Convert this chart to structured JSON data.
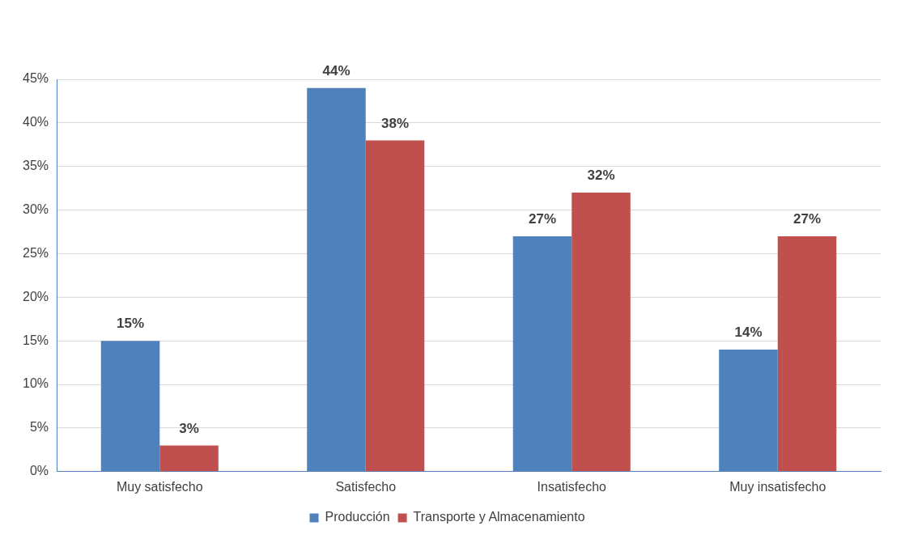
{
  "chart_data": {
    "type": "bar",
    "categories": [
      "Muy satisfecho",
      "Satisfecho",
      "Insatisfecho",
      "Muy insatisfecho"
    ],
    "series": [
      {
        "name": "Producción",
        "color": "#4f81bd",
        "values": [
          15,
          44,
          27,
          14
        ],
        "value_labels": [
          "15%",
          "44%",
          "27%",
          "14%"
        ]
      },
      {
        "name": "Transporte y Almacenamiento",
        "color": "#c0504d",
        "values": [
          3,
          38,
          32,
          27
        ],
        "value_labels": [
          "3%",
          "38%",
          "32%",
          "27%"
        ]
      }
    ],
    "ylim": [
      0,
      45
    ],
    "yticks": [
      {
        "value": 0,
        "label": "0%"
      },
      {
        "value": 5,
        "label": "5%"
      },
      {
        "value": 10,
        "label": "10%"
      },
      {
        "value": 15,
        "label": "15%"
      },
      {
        "value": 20,
        "label": "20%"
      },
      {
        "value": 25,
        "label": "25%"
      },
      {
        "value": 30,
        "label": "30%"
      },
      {
        "value": 35,
        "label": "35%"
      },
      {
        "value": 40,
        "label": "40%"
      },
      {
        "value": 45,
        "label": "45%"
      }
    ],
    "grid": "y",
    "legend": "bottom"
  }
}
